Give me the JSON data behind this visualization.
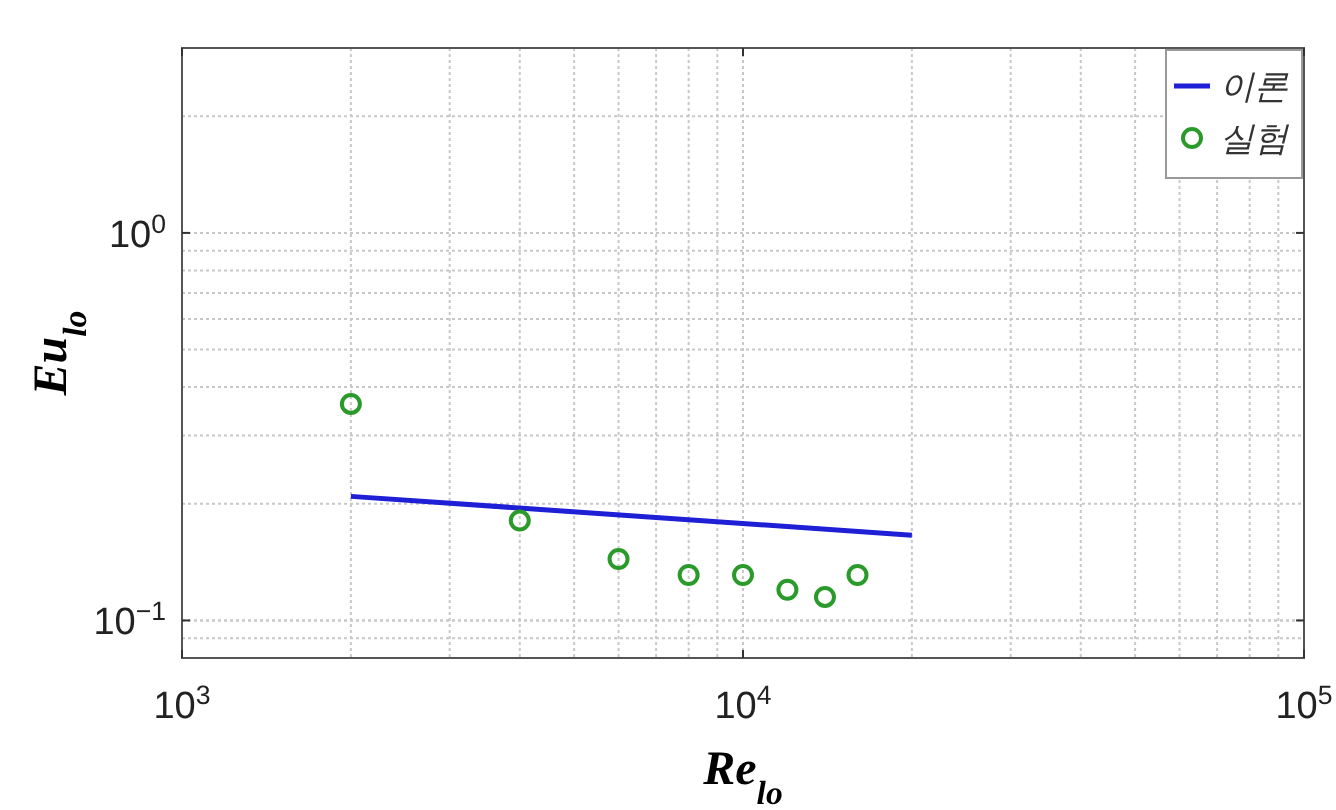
{
  "chart_data": {
    "type": "scatter",
    "xlabel": "Re$_{lo}$",
    "ylabel": "Eu$_{lo}$",
    "log": "xy",
    "xlim": [
      1000,
      100000
    ],
    "ylim": [
      0.08,
      3
    ],
    "xticks": [
      {
        "value": 1000,
        "label": "10$^{3}$"
      },
      {
        "value": 10000,
        "label": "10$^{4}$"
      },
      {
        "value": 100000,
        "label": "10$^{5}$"
      }
    ],
    "yticks": [
      {
        "value": 0.1,
        "label": "10$^{−1}$"
      },
      {
        "value": 1,
        "label": "10$^{0}$"
      }
    ],
    "grid": true,
    "legend": "top right",
    "series": [
      {
        "name": "이론",
        "type": "line",
        "color": "#1f1fd6",
        "marker": "none",
        "line_style": "solid",
        "x": [
          2000,
          20000
        ],
        "values": [
          0.209,
          0.166
        ]
      },
      {
        "name": "실험",
        "type": "scatter",
        "color": "#2a9a2a",
        "marker": "circle",
        "x": [
          2000,
          4000,
          6000,
          8000,
          10000,
          12000,
          14000,
          16000
        ],
        "values": [
          0.362,
          0.181,
          0.144,
          0.131,
          0.131,
          0.12,
          0.115,
          0.131
        ]
      }
    ]
  }
}
